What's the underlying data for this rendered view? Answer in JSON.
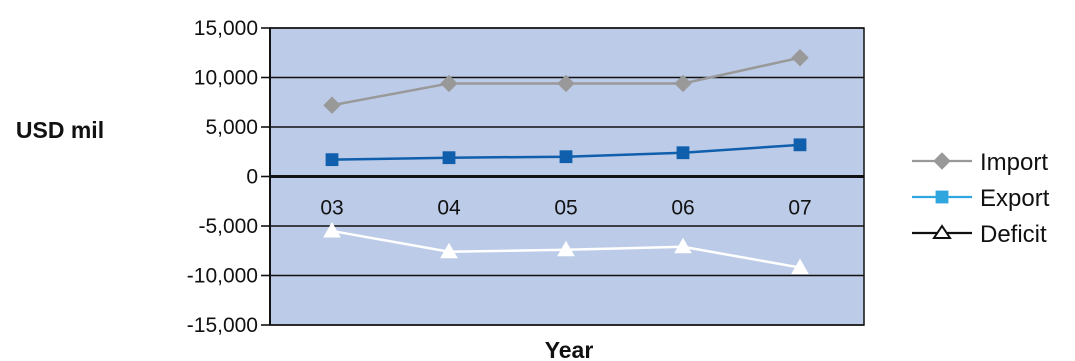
{
  "chart_data": {
    "type": "line",
    "title": "",
    "xlabel": "Year",
    "ylabel": "USD mil",
    "categories": [
      "03",
      "04",
      "05",
      "06",
      "07"
    ],
    "ylim": [
      -15000,
      15000
    ],
    "yticks": [
      15000,
      10000,
      5000,
      0,
      -5000,
      -10000,
      -15000
    ],
    "ytick_labels": [
      "15,000",
      "10,000",
      "5,000",
      "0",
      "-5,000",
      "-10,000",
      "-15,000"
    ],
    "grid": true,
    "legend_position": "right",
    "plot_background": "#bccbe7",
    "series": [
      {
        "name": "Import",
        "values": [
          7200,
          9400,
          9400,
          9400,
          12000
        ],
        "color": "#999999",
        "marker": "diamond"
      },
      {
        "name": "Export",
        "values": [
          1700,
          1900,
          2000,
          2400,
          3200
        ],
        "color": "#0f5fad",
        "marker": "square",
        "legend_color": "#2fa6de"
      },
      {
        "name": "Deficit",
        "values": [
          -5500,
          -7600,
          -7400,
          -7100,
          -9200
        ],
        "color": "#ffffff",
        "marker": "triangle",
        "legend_color": "#111111"
      }
    ]
  }
}
